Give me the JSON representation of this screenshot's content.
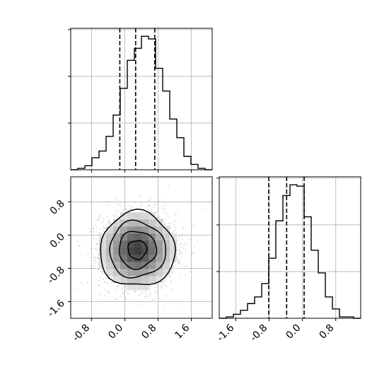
{
  "chart_data": {
    "type": "corner",
    "panels": [
      {
        "id": "hist_x",
        "type": "histogram",
        "x_range": [
          -1.3,
          2.1
        ],
        "y_range": [
          0,
          1.06
        ],
        "bin_edges": [
          -1.3,
          -1.13,
          -0.96,
          -0.79,
          -0.62,
          -0.45,
          -0.28,
          -0.11,
          0.06,
          0.23,
          0.4,
          0.57,
          0.74,
          0.91,
          1.08,
          1.25,
          1.42,
          1.59,
          1.76,
          1.93,
          2.1
        ],
        "counts": [
          0.0,
          0.01,
          0.03,
          0.09,
          0.14,
          0.25,
          0.41,
          0.61,
          0.82,
          0.91,
          1.0,
          0.98,
          0.76,
          0.59,
          0.38,
          0.24,
          0.1,
          0.04,
          0.01,
          0.0
        ],
        "quantiles": [
          -0.12,
          0.26,
          0.72
        ],
        "x_ticks": [
          -0.8,
          0.0,
          0.8,
          1.6
        ],
        "y_ticks": [
          0.35,
          0.7,
          1.05
        ],
        "grid": true
      },
      {
        "id": "hist_y",
        "type": "histogram",
        "x_range": [
          -2.0,
          1.4
        ],
        "y_range": [
          0,
          1.06
        ],
        "bin_edges": [
          -2.0,
          -1.83,
          -1.66,
          -1.49,
          -1.32,
          -1.15,
          -0.98,
          -0.81,
          -0.64,
          -0.47,
          -0.3,
          -0.13,
          0.04,
          0.21,
          0.38,
          0.55,
          0.72,
          0.89,
          1.06,
          1.23,
          1.4
        ],
        "counts": [
          0.0,
          0.01,
          0.03,
          0.06,
          0.11,
          0.16,
          0.26,
          0.45,
          0.73,
          0.92,
          1.0,
          0.99,
          0.76,
          0.51,
          0.34,
          0.16,
          0.07,
          0.01,
          0.01,
          0.0
        ],
        "quantiles": [
          -0.81,
          -0.38,
          0.04
        ],
        "x_ticks": [
          "-1.6",
          "-0.8",
          "0.0",
          "0.8"
        ],
        "y_ticks": [
          0.35,
          0.7,
          1.05
        ],
        "grid": true
      },
      {
        "id": "joint",
        "type": "2d-density",
        "x_range": [
          -1.3,
          2.1
        ],
        "y_range": [
          -2.0,
          1.4
        ],
        "center": [
          0.3,
          -0.35
        ],
        "sigma": [
          0.45,
          0.45
        ],
        "n_points": 2600,
        "contour_levels_sigma": [
          0.5,
          1.0,
          1.5,
          2.0
        ],
        "x_ticks": [
          "-0.8",
          "0.0",
          "0.8",
          "1.6"
        ],
        "y_ticks": [
          "0.8",
          "0.0",
          "-0.8",
          "-1.6"
        ],
        "grid": true
      }
    ]
  }
}
